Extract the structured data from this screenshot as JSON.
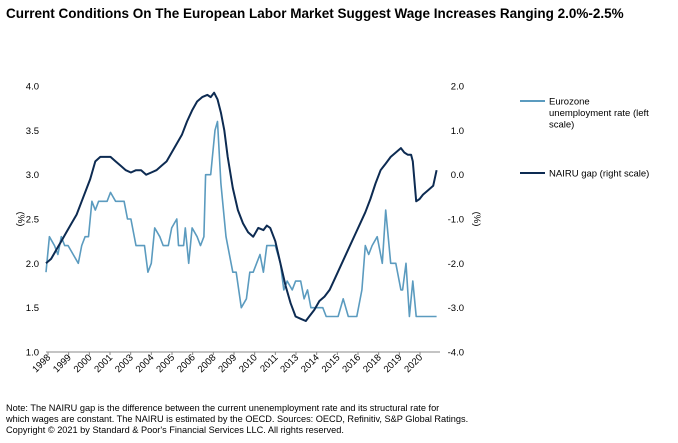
{
  "title": "Current Conditions On The European Labor Market Suggest Wage Increases Ranging 2.0%-2.5%",
  "note": {
    "line1": "Note: The NAIRU gap is the difference between the current unenemployment rate and its structural rate for",
    "line2": "which wages are constant. The NAIRU is estimated by the OECD. Sources: OECD, Refinitiv, S&P Global  Ratings.",
    "line3": "Copyright © 2021 by Standard & Poor's Financial Services LLC. All rights reserved."
  },
  "chart_data": {
    "type": "line",
    "title": "Current Conditions On The European Labor Market Suggest Wage Increases Ranging 2.0%-2.5%",
    "y_left": {
      "label": "(%)",
      "range": [
        1.0,
        4.0
      ],
      "ticks": [
        "1.0",
        "1.5",
        "2.0",
        "2.5",
        "3.0",
        "3.5",
        "4.0"
      ]
    },
    "y_right": {
      "label": "(%)",
      "range": [
        -4.0,
        2.0
      ],
      "ticks": [
        "-4.0",
        "-3.0",
        "-2.0",
        "-1.0",
        "0.0",
        "1.0",
        "2.0"
      ]
    },
    "x_ticks": [
      "1998",
      "1999",
      "2000",
      "2001",
      "2003",
      "2004",
      "2005",
      "2006",
      "2008",
      "2009",
      "2010",
      "2011",
      "2013",
      "2014",
      "2015",
      "2016",
      "2018",
      "2019",
      "2020"
    ],
    "x_range": [
      1998.0,
      2021.2
    ],
    "grid": false,
    "legend_position": "right",
    "series": [
      {
        "name": "Eurozone unemployment rate (left scale)",
        "legend_lines": [
          "Eurozone",
          "unemployment rate (left",
          "scale)"
        ],
        "axis": "left",
        "color": "#5b9bbf",
        "x": [
          1998.0,
          1998.2,
          1998.5,
          1998.7,
          1998.9,
          1999.1,
          1999.3,
          1999.6,
          1999.9,
          2000.1,
          2000.3,
          2000.5,
          2000.7,
          2000.9,
          2001.1,
          2001.3,
          2001.6,
          2001.8,
          2002.1,
          2002.4,
          2002.6,
          2002.8,
          2003.0,
          2003.3,
          2003.6,
          2003.8,
          2004.0,
          2004.2,
          2004.4,
          2004.7,
          2004.9,
          2005.2,
          2005.4,
          2005.7,
          2005.8,
          2006.1,
          2006.2,
          2006.4,
          2006.6,
          2006.9,
          2007.1,
          2007.3,
          2007.4,
          2007.5,
          2007.7,
          2007.8,
          2007.95,
          2008.1,
          2008.3,
          2008.6,
          2008.8,
          2009.0,
          2009.2,
          2009.5,
          2009.8,
          2010.0,
          2010.2,
          2010.4,
          2010.6,
          2010.8,
          2011.0,
          2011.2,
          2011.5,
          2011.8,
          2012.0,
          2012.2,
          2012.5,
          2012.7,
          2013.0,
          2013.2,
          2013.4,
          2013.6,
          2013.9,
          2014.1,
          2014.3,
          2014.5,
          2014.7,
          2015.0,
          2015.2,
          2015.5,
          2015.8,
          2016.0,
          2016.3,
          2016.6,
          2016.8,
          2017.0,
          2017.2,
          2017.5,
          2017.8,
          2018.0,
          2018.3,
          2018.6,
          2018.9,
          2019.0,
          2019.2,
          2019.4,
          2019.6,
          2019.8,
          2020.0,
          2020.2,
          2020.4,
          2020.6,
          2020.8,
          2021.0
        ],
        "y": [
          1.9,
          2.3,
          2.2,
          2.1,
          2.3,
          2.2,
          2.2,
          2.1,
          2.0,
          2.2,
          2.3,
          2.3,
          2.7,
          2.6,
          2.7,
          2.7,
          2.7,
          2.8,
          2.7,
          2.7,
          2.7,
          2.5,
          2.5,
          2.2,
          2.2,
          2.2,
          1.9,
          2.0,
          2.4,
          2.3,
          2.2,
          2.2,
          2.4,
          2.5,
          2.2,
          2.2,
          2.4,
          2.0,
          2.4,
          2.3,
          2.2,
          2.3,
          3.0,
          3.0,
          3.0,
          3.2,
          3.5,
          3.6,
          2.9,
          2.3,
          2.1,
          1.9,
          1.9,
          1.5,
          1.6,
          1.9,
          1.9,
          2.0,
          2.1,
          1.9,
          2.2,
          2.2,
          2.2,
          2.0,
          1.7,
          1.8,
          1.7,
          1.8,
          1.8,
          1.6,
          1.7,
          1.5,
          1.5,
          1.5,
          1.5,
          1.4,
          1.4,
          1.4,
          1.4,
          1.6,
          1.4,
          1.4,
          1.4,
          1.7,
          2.2,
          2.1,
          2.2,
          2.3,
          2.0,
          2.6,
          2.0,
          2.0,
          1.7,
          1.7,
          2.0,
          1.4,
          1.8,
          1.4,
          1.4,
          1.4,
          1.4,
          1.4,
          1.4,
          1.4
        ]
      },
      {
        "name": "NAIRU gap (right scale)",
        "legend_lines": [
          "NAIRU gap (right scale)"
        ],
        "axis": "right",
        "color": "#0d2b52",
        "x": [
          1998.0,
          1998.3,
          1998.6,
          1998.9,
          1999.2,
          1999.5,
          1999.8,
          2000.1,
          2000.4,
          2000.6,
          2000.9,
          2001.2,
          2001.5,
          2001.8,
          2002.1,
          2002.4,
          2002.7,
          2003.0,
          2003.3,
          2003.6,
          2003.9,
          2004.2,
          2004.5,
          2004.8,
          2005.1,
          2005.4,
          2005.7,
          2006.0,
          2006.3,
          2006.6,
          2006.9,
          2007.2,
          2007.5,
          2007.7,
          2007.9,
          2008.1,
          2008.3,
          2008.5,
          2008.7,
          2009.0,
          2009.3,
          2009.6,
          2009.9,
          2010.2,
          2010.5,
          2010.8,
          2011.0,
          2011.2,
          2011.5,
          2011.8,
          2012.1,
          2012.4,
          2012.7,
          2013.0,
          2013.3,
          2013.5,
          2013.8,
          2014.1,
          2014.4,
          2014.7,
          2015.0,
          2015.3,
          2015.6,
          2015.9,
          2016.2,
          2016.5,
          2016.8,
          2017.1,
          2017.4,
          2017.7,
          2018.0,
          2018.3,
          2018.6,
          2018.9,
          2019.1,
          2019.3,
          2019.5,
          2019.6,
          2019.8,
          2020.0,
          2020.2,
          2020.5,
          2020.8,
          2021.0
        ],
        "y": [
          -2.0,
          -1.9,
          -1.7,
          -1.5,
          -1.3,
          -1.1,
          -0.9,
          -0.6,
          -0.3,
          -0.1,
          0.3,
          0.4,
          0.4,
          0.4,
          0.3,
          0.2,
          0.1,
          0.05,
          0.1,
          0.1,
          0.0,
          0.05,
          0.1,
          0.2,
          0.3,
          0.5,
          0.7,
          0.9,
          1.2,
          1.45,
          1.65,
          1.75,
          1.8,
          1.75,
          1.85,
          1.7,
          1.4,
          1.0,
          0.4,
          -0.3,
          -0.8,
          -1.1,
          -1.3,
          -1.4,
          -1.2,
          -1.25,
          -1.15,
          -1.2,
          -1.5,
          -2.0,
          -2.5,
          -2.9,
          -3.2,
          -3.25,
          -3.3,
          -3.2,
          -3.05,
          -2.85,
          -2.75,
          -2.6,
          -2.35,
          -2.1,
          -1.85,
          -1.6,
          -1.35,
          -1.1,
          -0.85,
          -0.55,
          -0.2,
          0.1,
          0.25,
          0.4,
          0.5,
          0.6,
          0.5,
          0.45,
          0.45,
          0.3,
          -0.6,
          -0.55,
          -0.45,
          -0.35,
          -0.25,
          0.1
        ]
      }
    ]
  }
}
